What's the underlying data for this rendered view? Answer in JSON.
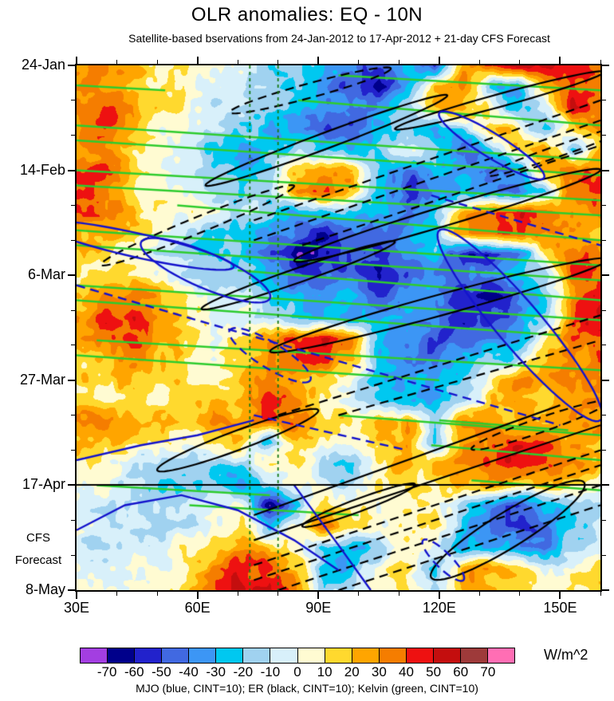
{
  "title": "OLR anomalies: EQ - 10N",
  "subtitle": "Satellite-based bservations from 24-Jan-2012 to 17-Apr-2012 + 21-day CFS Forecast",
  "caption": "MJO (blue, CINT=10); ER (black, CINT=10); Kelvin (green, CINT=10)",
  "y_axis": {
    "tick_labels": [
      "24-Jan",
      "14-Feb",
      "6-Mar",
      "27-Mar",
      "17-Apr",
      "8-May"
    ],
    "tick_days": [
      0,
      21,
      42,
      63,
      84,
      105
    ],
    "minor_step_days": 7,
    "forecast_label_lines": [
      "CFS",
      "Forecast"
    ],
    "forecast_start_day": 84
  },
  "x_axis": {
    "tick_labels": [
      "30E",
      "60E",
      "90E",
      "120E",
      "150E"
    ],
    "tick_lons": [
      30,
      60,
      90,
      120,
      150
    ],
    "minor_step_deg": 10,
    "range": [
      30,
      160
    ]
  },
  "colorbar": {
    "units": "W/m^2",
    "boundaries": [
      -70,
      -60,
      -50,
      -40,
      -30,
      -20,
      -10,
      0,
      10,
      20,
      30,
      40,
      50,
      60,
      70
    ],
    "colors": [
      "#A33EE1",
      "#00008B",
      "#2222CC",
      "#4169E1",
      "#3C96F5",
      "#00C8F0",
      "#A0D2F0",
      "#D8F0FA",
      "#FFFBD2",
      "#FFD92E",
      "#FFA500",
      "#F57D00",
      "#EE1111",
      "#C40E0E",
      "#9E3A3A",
      "#FF6EB4"
    ]
  },
  "chart_data": {
    "type": "heatmap",
    "title": "OLR anomalies: EQ - 10N",
    "units": "W/m^2",
    "x_range": [
      30,
      160
    ],
    "t_range_days": [
      0,
      105
    ],
    "t_start": "24-Jan-2012",
    "t_end": "8-May-2012",
    "contour_interval": 10,
    "grid_lons": [
      30,
      36.8,
      43.7,
      50.5,
      57.4,
      64.2,
      71.1,
      77.9,
      84.7,
      91.6,
      98.4,
      105.3,
      112.1,
      118.9,
      125.8,
      132.6,
      139.5,
      146.3,
      153.2,
      160
    ],
    "grid_days": [
      0,
      4.2,
      8.4,
      12.6,
      16.8,
      21,
      25.2,
      29.4,
      33.6,
      37.8,
      42,
      46.2,
      50.4,
      54.6,
      58.8,
      63,
      67.2,
      71.4,
      75.6,
      79.8,
      84,
      88.2,
      92.4,
      96.6,
      100.8,
      105
    ],
    "values": [
      [
        30,
        30,
        20,
        10,
        5,
        0,
        -5,
        -15,
        -20,
        -30,
        -40,
        -50,
        -25,
        -45,
        30,
        45,
        55,
        50,
        45,
        35
      ],
      [
        30,
        35,
        25,
        10,
        5,
        0,
        -5,
        -15,
        -25,
        -35,
        -45,
        -60,
        -30,
        25,
        30,
        -20,
        -35,
        20,
        45,
        30
      ],
      [
        35,
        40,
        25,
        10,
        0,
        -5,
        -10,
        -20,
        -30,
        -35,
        -40,
        -35,
        -15,
        25,
        30,
        5,
        -30,
        -10,
        50,
        35
      ],
      [
        30,
        35,
        20,
        5,
        0,
        -10,
        -15,
        -25,
        -35,
        -45,
        -50,
        -30,
        -10,
        -35,
        -20,
        25,
        15,
        -30,
        20,
        30
      ],
      [
        30,
        30,
        15,
        5,
        -5,
        -20,
        -35,
        -25,
        -15,
        -20,
        -30,
        -20,
        0,
        -10,
        -45,
        -30,
        20,
        30,
        -25,
        20
      ],
      [
        35,
        40,
        20,
        5,
        0,
        -15,
        -30,
        -20,
        20,
        30,
        20,
        -30,
        -45,
        -20,
        -30,
        -50,
        -35,
        25,
        35,
        30
      ],
      [
        35,
        35,
        15,
        5,
        0,
        -10,
        -20,
        -10,
        30,
        35,
        25,
        -25,
        -55,
        -40,
        -25,
        -35,
        -45,
        -20,
        30,
        40
      ],
      [
        40,
        35,
        20,
        10,
        5,
        0,
        -10,
        -20,
        -30,
        -25,
        -20,
        -35,
        -40,
        -25,
        20,
        40,
        45,
        40,
        30,
        25
      ],
      [
        30,
        25,
        10,
        0,
        -10,
        -15,
        -20,
        -30,
        -45,
        -60,
        -45,
        -50,
        -35,
        -20,
        30,
        45,
        40,
        30,
        20,
        15
      ],
      [
        15,
        10,
        0,
        -10,
        -15,
        -20,
        -25,
        -40,
        -70,
        -60,
        -45,
        -50,
        -40,
        -30,
        -55,
        -65,
        -40,
        10,
        30,
        35
      ],
      [
        10,
        15,
        10,
        0,
        -10,
        -15,
        -20,
        -30,
        -50,
        -45,
        -40,
        -60,
        -45,
        -35,
        -45,
        -40,
        -30,
        -20,
        40,
        45
      ],
      [
        20,
        35,
        40,
        25,
        10,
        0,
        -10,
        -20,
        -30,
        -35,
        -30,
        -45,
        -35,
        -40,
        -55,
        -65,
        -45,
        -25,
        35,
        50
      ],
      [
        25,
        45,
        50,
        30,
        15,
        5,
        0,
        -10,
        -20,
        -25,
        -30,
        -35,
        -30,
        -45,
        -55,
        -50,
        -40,
        -20,
        40,
        45
      ],
      [
        20,
        35,
        40,
        25,
        10,
        5,
        10,
        25,
        40,
        50,
        30,
        -25,
        -40,
        -50,
        -45,
        -40,
        -30,
        10,
        45,
        40
      ],
      [
        15,
        25,
        30,
        20,
        10,
        5,
        15,
        30,
        45,
        40,
        20,
        -30,
        -45,
        -40,
        -35,
        -25,
        -15,
        20,
        35,
        30
      ],
      [
        10,
        15,
        20,
        15,
        10,
        10,
        20,
        30,
        25,
        10,
        0,
        -25,
        -35,
        -30,
        -20,
        10,
        25,
        30,
        25,
        35
      ],
      [
        15,
        10,
        15,
        10,
        10,
        15,
        25,
        45,
        30,
        5,
        -5,
        -20,
        -30,
        -25,
        -15,
        15,
        25,
        20,
        30,
        40
      ],
      [
        30,
        30,
        25,
        20,
        20,
        25,
        30,
        40,
        35,
        20,
        10,
        25,
        30,
        -20,
        25,
        30,
        20,
        25,
        30,
        25
      ],
      [
        25,
        20,
        15,
        10,
        5,
        10,
        15,
        -30,
        20,
        10,
        5,
        20,
        25,
        -25,
        20,
        35,
        45,
        40,
        25,
        20
      ],
      [
        10,
        5,
        -5,
        -15,
        -20,
        -15,
        -10,
        10,
        15,
        -15,
        -20,
        15,
        25,
        15,
        30,
        45,
        50,
        40,
        30,
        25
      ],
      [
        5,
        0,
        -10,
        -20,
        -15,
        -25,
        -40,
        -15,
        0,
        -10,
        -15,
        10,
        15,
        10,
        20,
        25,
        20,
        15,
        10,
        5
      ],
      [
        0,
        -5,
        -10,
        -15,
        -10,
        -5,
        5,
        -65,
        -30,
        20,
        10,
        5,
        10,
        15,
        -20,
        -40,
        -50,
        -30,
        -15,
        -10
      ],
      [
        -5,
        -10,
        -10,
        -10,
        -5,
        5,
        15,
        -25,
        10,
        45,
        15,
        5,
        15,
        10,
        -25,
        -35,
        -45,
        -50,
        -25,
        -10
      ],
      [
        -5,
        -10,
        -5,
        0,
        5,
        15,
        30,
        20,
        5,
        -25,
        -35,
        -15,
        10,
        5,
        -30,
        -25,
        -35,
        -40,
        -15,
        0
      ],
      [
        0,
        -5,
        0,
        5,
        10,
        30,
        45,
        40,
        20,
        -30,
        -20,
        5,
        15,
        -20,
        20,
        30,
        15,
        -10,
        5,
        10
      ],
      [
        5,
        0,
        5,
        10,
        20,
        40,
        55,
        55,
        30,
        -15,
        -10,
        10,
        10,
        -10,
        25,
        20,
        10,
        0,
        5,
        10
      ]
    ],
    "overlays": {
      "kelvin_color": "#2ECC2E",
      "er_color": "#000000",
      "mjo_color": "#1414CC",
      "reference_color": "#157A15",
      "reference_lons": [
        73,
        80
      ],
      "forecast_divider_day": 84,
      "kelvin_lines": [
        [
          30,
          12,
          160,
          19
        ],
        [
          30,
          15,
          160,
          22
        ],
        [
          30,
          21,
          160,
          27
        ],
        [
          30,
          24,
          160,
          30
        ],
        [
          55,
          28,
          160,
          35
        ],
        [
          30,
          33,
          160,
          40
        ],
        [
          30,
          36,
          160,
          43
        ],
        [
          70,
          41,
          160,
          47
        ],
        [
          30,
          44,
          160,
          51
        ],
        [
          30,
          47,
          150,
          54
        ],
        [
          35,
          55,
          160,
          61
        ],
        [
          30,
          58,
          120,
          63
        ],
        [
          85,
          7,
          160,
          12
        ],
        [
          95,
          2,
          160,
          5
        ],
        [
          30,
          4,
          52,
          5
        ],
        [
          95,
          70,
          160,
          74
        ],
        [
          118,
          76,
          160,
          79
        ],
        [
          35,
          84,
          78,
          86
        ],
        [
          58,
          88,
          100,
          90
        ],
        [
          120,
          71,
          152,
          73
        ],
        [
          128,
          83,
          160,
          85
        ]
      ],
      "er": [
        {
          "e": [
            88,
            5,
            20,
            -0.22,
            9
          ],
          "d": 1
        },
        {
          "e": [
            92,
            15,
            30,
            -0.3,
            10
          ],
          "d": 0
        },
        {
          "e": [
            135,
            7,
            26,
            -0.22,
            8
          ],
          "d": 0
        },
        {
          "e": [
            150,
            17,
            18,
            -0.28,
            7
          ],
          "d": 1
        },
        {
          "e": [
            122,
            30,
            38,
            -0.24,
            12
          ],
          "d": 0
        },
        {
          "e": [
            60,
            32,
            24,
            -0.33,
            10
          ],
          "d": 1
        },
        {
          "e": [
            85,
            42,
            24,
            -0.28,
            9
          ],
          "d": 0
        },
        {
          "e": [
            120,
            48,
            42,
            -0.22,
            13
          ],
          "d": 0
        },
        {
          "e": [
            70,
            75,
            20,
            -0.3,
            12
          ],
          "d": 0
        },
        {
          "e": [
            100,
            88,
            14,
            -0.3,
            8
          ],
          "d": 0
        },
        {
          "e": [
            137,
            93,
            19,
            -0.5,
            22
          ],
          "d": 0
        },
        {
          "e": [
            145,
            72,
            17,
            -0.28,
            9
          ],
          "d": 1
        },
        {
          "l": [
            [
              74,
              31
            ],
            [
              160,
              7
            ]
          ],
          "d": 1
        },
        {
          "l": [
            [
              74,
              35
            ],
            [
              160,
              11
            ]
          ],
          "d": 1
        },
        {
          "l": [
            [
              86,
              36
            ],
            [
              160,
              16
            ]
          ],
          "d": 1
        },
        {
          "l": [
            [
              80,
              70
            ],
            [
              160,
              50
            ]
          ],
          "d": 1
        },
        {
          "l": [
            [
              95,
              70
            ],
            [
              160,
              55
            ]
          ],
          "d": 1
        },
        {
          "l": [
            [
              74,
              100
            ],
            [
              160,
              77
            ]
          ],
          "d": 1
        },
        {
          "l": [
            [
              74,
              103
            ],
            [
              160,
              80
            ]
          ],
          "d": 1
        },
        {
          "l": [
            [
              80,
              105
            ],
            [
              160,
              84
            ]
          ],
          "d": 1
        },
        {
          "l": [
            [
              95,
              105
            ],
            [
              160,
              88
            ]
          ],
          "d": 1
        },
        {
          "l": [
            [
              74,
              95
            ],
            [
              160,
              72
            ]
          ],
          "d": 0
        },
        {
          "l": [
            [
              74,
              90
            ],
            [
              150,
              68
            ]
          ],
          "d": 0
        }
      ],
      "mjo": [
        {
          "e": [
            45,
            36,
            24,
            0.18,
            15
          ],
          "d": 0
        },
        {
          "e": [
            62,
            41,
            16,
            0.35,
            22
          ],
          "d": 0
        },
        {
          "e": [
            133,
            16,
            13,
            0.5,
            15
          ],
          "d": 0
        },
        {
          "e": [
            140,
            52,
            20,
            0.95,
            28
          ],
          "d": 0
        },
        {
          "e": [
            78,
            58,
            10,
            0.5,
            16
          ],
          "d": 1
        },
        {
          "e": [
            121,
            99,
            5,
            0.8,
            10
          ],
          "d": 1
        },
        {
          "l": [
            [
              30,
              44
            ],
            [
              150,
              72
            ]
          ],
          "d": 1
        },
        {
          "l": [
            [
              74,
              70
            ],
            [
              112,
              77
            ]
          ],
          "d": 1
        },
        {
          "l": [
            [
              118,
              26
            ],
            [
              160,
              36
            ]
          ],
          "d": 1
        },
        {
          "l": [
            [
              30,
              79
            ],
            [
              46,
              76
            ],
            [
              60,
              74
            ],
            [
              74,
              71
            ]
          ],
          "d": 0
        },
        {
          "l": [
            [
              30,
              93
            ],
            [
              42,
              88
            ],
            [
              56,
              86
            ],
            [
              70,
              89
            ],
            [
              84,
              95
            ],
            [
              95,
              101
            ]
          ],
          "d": 0
        },
        {
          "l": [
            [
              84,
              84
            ],
            [
              95,
              96
            ],
            [
              103,
              105
            ]
          ],
          "d": 0
        }
      ]
    }
  }
}
